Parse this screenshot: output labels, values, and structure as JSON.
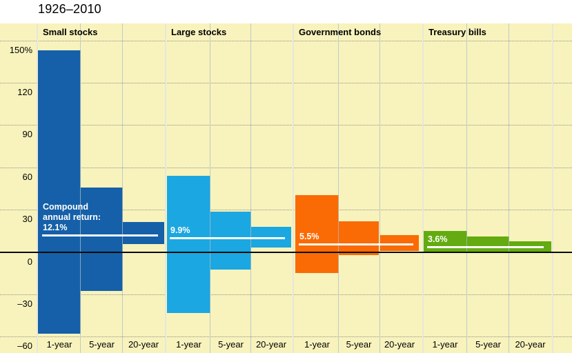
{
  "title": "1926–2010",
  "colors": {
    "page_background": "#ffffff",
    "chart_background": "#f8f3bd",
    "gridline": "#8e8e84",
    "zero_line": "#0a0a0a",
    "group_separator": "#e7e7da",
    "compound_line": "#ffffff",
    "annotation_text": "#ffffff"
  },
  "chart_data": {
    "type": "bar",
    "title": "1926–2010",
    "subtitle": "",
    "ylim": [
      -60,
      150
    ],
    "grid": "dotted horizontal gridlines every 30, solid line at 0",
    "legend_position": "none",
    "y_axis": {
      "tick_values": [
        150,
        120,
        90,
        60,
        30,
        0,
        -30,
        -60
      ],
      "tick_labels": [
        "150%",
        "120",
        "90",
        "60",
        "30",
        "0",
        "–30",
        "–60"
      ]
    },
    "categories": [
      "1-year",
      "5-year",
      "20-year"
    ],
    "groups": [
      {
        "label": "Small stocks",
        "color": "#1560a8",
        "compound_annual_return": 12.1,
        "annotation_lines": [
          "Compound",
          "annual return:",
          "12.1%"
        ],
        "bars": [
          {
            "period": "1-year",
            "high": 142.9,
            "low": -58.0
          },
          {
            "period": "5-year",
            "high": 45.9,
            "low": -27.5
          },
          {
            "period": "20-year",
            "high": 21.1,
            "low": 5.7
          }
        ]
      },
      {
        "label": "Large stocks",
        "color": "#1ba7e1",
        "compound_annual_return": 9.9,
        "annotation_lines": [
          "9.9%"
        ],
        "bars": [
          {
            "period": "1-year",
            "high": 54.0,
            "low": -43.3
          },
          {
            "period": "5-year",
            "high": 28.6,
            "low": -12.5
          },
          {
            "period": "20-year",
            "high": 17.9,
            "low": 3.1
          }
        ]
      },
      {
        "label": "Government bonds",
        "color": "#fa6b05",
        "compound_annual_return": 5.5,
        "annotation_lines": [
          "5.5%"
        ],
        "bars": [
          {
            "period": "1-year",
            "high": 40.4,
            "low": -14.9
          },
          {
            "period": "5-year",
            "high": 21.6,
            "low": -2.1
          },
          {
            "period": "20-year",
            "high": 12.1,
            "low": 0.7
          }
        ]
      },
      {
        "label": "Treasury bills",
        "color": "#63ab10",
        "compound_annual_return": 3.6,
        "annotation_lines": [
          "3.6%"
        ],
        "bars": [
          {
            "period": "1-year",
            "high": 14.7,
            "low": 0.0
          },
          {
            "period": "5-year",
            "high": 11.1,
            "low": 0.1
          },
          {
            "period": "20-year",
            "high": 7.7,
            "low": 0.4
          }
        ]
      }
    ]
  }
}
